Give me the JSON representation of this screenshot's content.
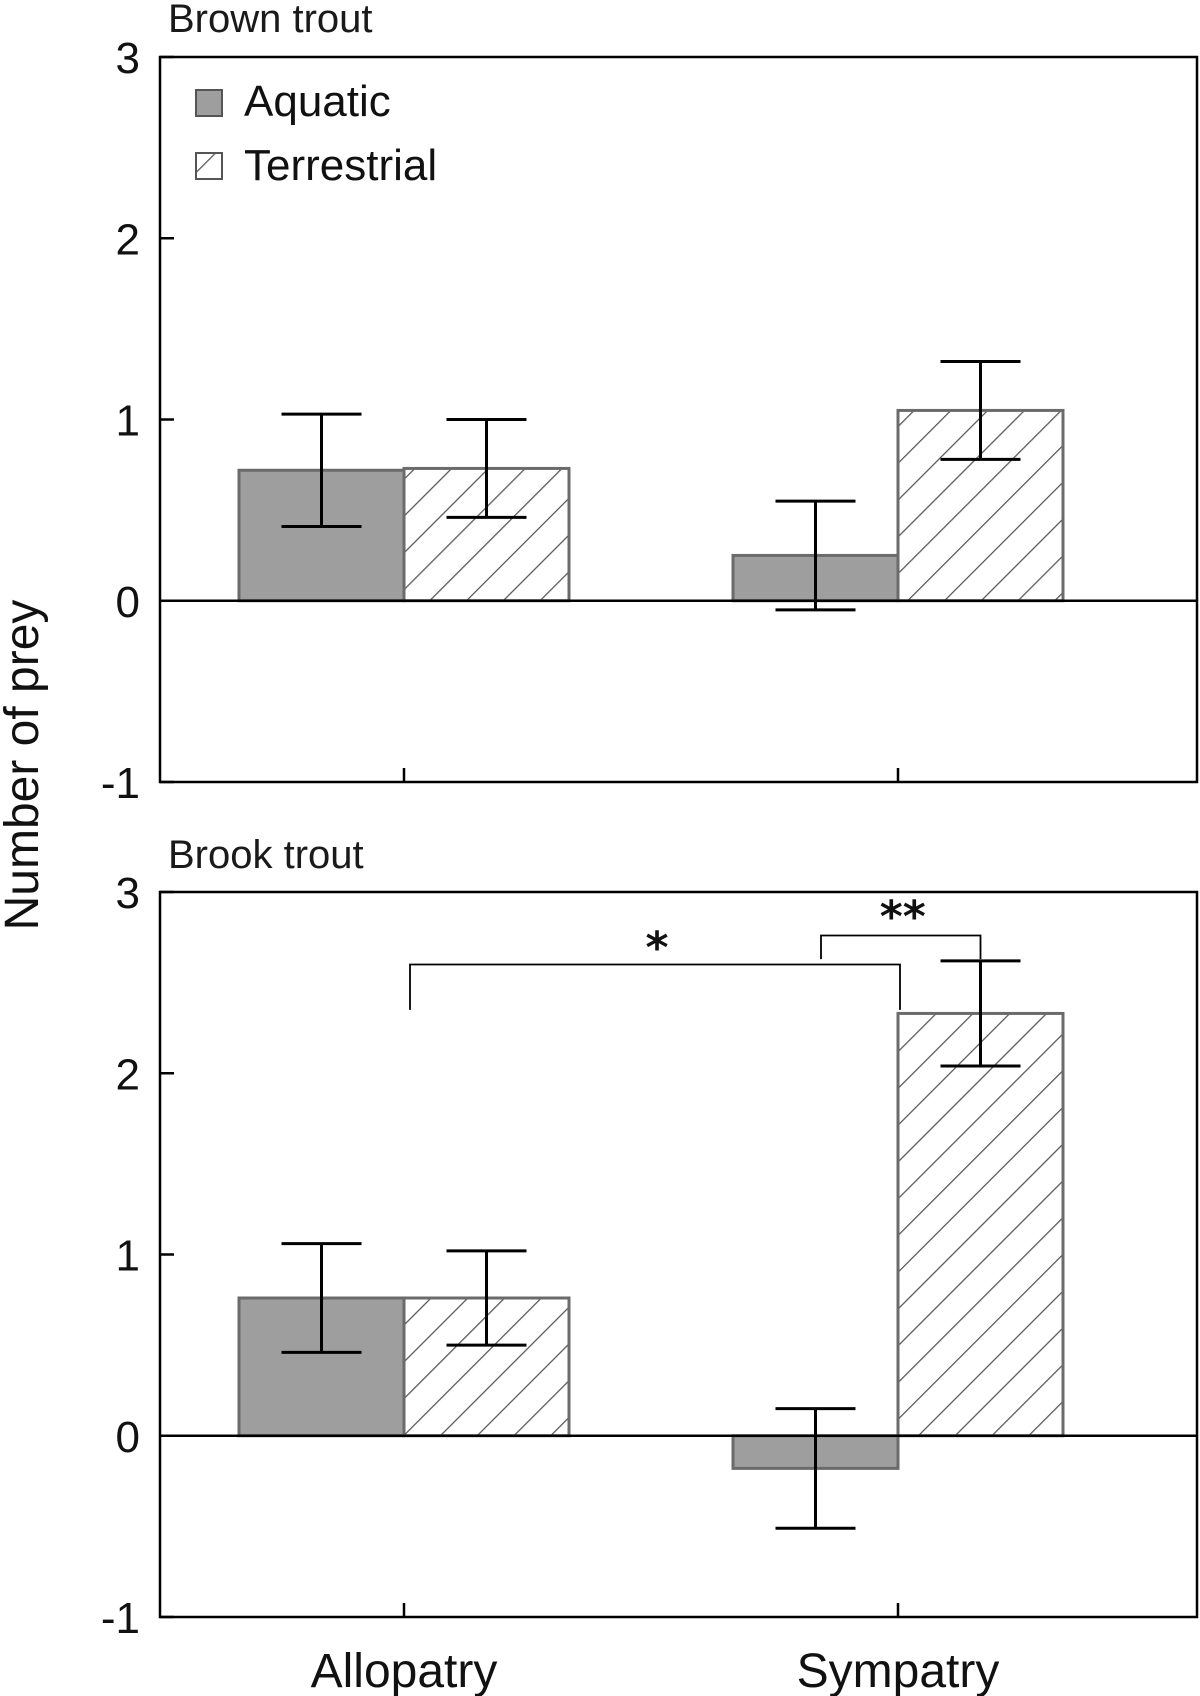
{
  "chart_data": [
    {
      "type": "bar",
      "title": "Brown trout",
      "ylabel": "Number of prey",
      "xlabel": "",
      "ylim": [
        -1,
        3
      ],
      "yticks": [
        "-1",
        "0",
        "1",
        "2",
        "3"
      ],
      "categories": [
        "Allopatry",
        "Sympatry"
      ],
      "series": [
        {
          "name": "Aquatic",
          "values": [
            0.72,
            0.25
          ],
          "error": [
            0.31,
            0.3
          ],
          "color": "#9e9e9e",
          "pattern": "solid"
        },
        {
          "name": "Terrestrial",
          "values": [
            0.73,
            1.05
          ],
          "error": [
            0.27,
            0.27
          ],
          "color": "#ffffff",
          "pattern": "hatched"
        }
      ],
      "legend": "top-left",
      "significance": []
    },
    {
      "type": "bar",
      "title": "Brook trout",
      "ylabel": "Number of prey",
      "xlabel": "",
      "ylim": [
        -1,
        3
      ],
      "yticks": [
        "-1",
        "0",
        "1",
        "2",
        "3"
      ],
      "categories": [
        "Allopatry",
        "Sympatry"
      ],
      "series": [
        {
          "name": "Aquatic",
          "values": [
            0.76,
            -0.18
          ],
          "error": [
            0.3,
            0.33
          ],
          "color": "#9e9e9e",
          "pattern": "solid"
        },
        {
          "name": "Terrestrial",
          "values": [
            0.76,
            2.33
          ],
          "error": [
            0.26,
            0.29
          ],
          "color": "#ffffff",
          "pattern": "hatched"
        }
      ],
      "legend": "none",
      "significance": [
        {
          "label": "*",
          "from": "Allopatry",
          "to": "Sympatry Aquatic"
        },
        {
          "label": "**",
          "from": "Sympatry Aquatic",
          "to": "Sympatry Terrestrial"
        }
      ]
    }
  ]
}
